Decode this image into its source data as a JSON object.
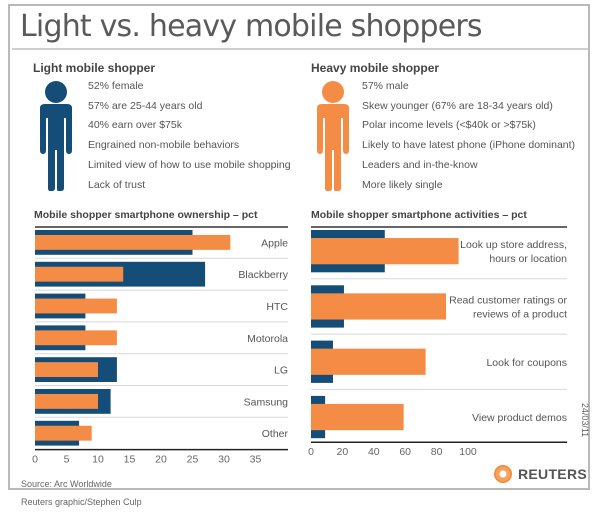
{
  "title": "Light vs. heavy mobile shoppers",
  "light": {
    "heading": "Light mobile shopper",
    "color": "#134d78",
    "icon": "person-icon",
    "traits": [
      "52% female",
      "57% are 25-44 years old",
      "40% earn over $75k",
      "Engrained non-mobile behaviors",
      "Limited view of how to use mobile shopping",
      "Lack of trust"
    ]
  },
  "heavy": {
    "heading": "Heavy mobile shopper",
    "color": "#f48c45",
    "icon": "person-icon",
    "traits": [
      "57% male",
      "Skew younger (67% are 18-34 years old)",
      "Polar income levels (<$40k or >$75k)",
      "Likely to have latest phone (iPhone dominant)",
      "Leaders and in-the-know",
      "More likely single"
    ]
  },
  "chart_data": [
    {
      "type": "bar",
      "orientation": "horizontal",
      "title": "Mobile shopper smartphone ownership – pct",
      "categories": [
        "Apple",
        "Blackberry",
        "HTC",
        "Motorola",
        "LG",
        "Samsung",
        "Other"
      ],
      "series": [
        {
          "name": "Light mobile shopper",
          "color": "#134d78",
          "values": [
            25,
            27,
            8,
            8,
            13,
            12,
            7
          ]
        },
        {
          "name": "Heavy mobile shopper",
          "color": "#f48c45",
          "values": [
            31,
            14,
            13,
            13,
            10,
            10,
            9
          ]
        }
      ],
      "xticks": [
        0,
        5,
        10,
        15,
        20,
        25,
        30,
        35
      ],
      "xlim": [
        0,
        40
      ],
      "grid": false
    },
    {
      "type": "bar",
      "orientation": "horizontal",
      "title": "Mobile shopper smartphone activities – pct",
      "categories": [
        "Look up store address, hours or location",
        "Read customer ratings or reviews of a product",
        "Look for coupons",
        "View product demos"
      ],
      "category_lines": [
        [
          "Look up store address,",
          "hours or location"
        ],
        [
          "Read customer ratings or",
          "reviews of a product"
        ],
        [
          "Look for coupons"
        ],
        [
          "View product demos"
        ]
      ],
      "series": [
        {
          "name": "Light mobile shopper",
          "color": "#134d78",
          "values": [
            47,
            21,
            14,
            9
          ]
        },
        {
          "name": "Heavy mobile shopper",
          "color": "#f48c45",
          "values": [
            94,
            86,
            73,
            59
          ]
        }
      ],
      "xticks": [
        0,
        20,
        40,
        60,
        80,
        100
      ],
      "xlim": [
        0,
        100
      ],
      "grid": false
    }
  ],
  "footer": {
    "source": "Source: Arc Worldwide",
    "credit": "Reuters graphic/Stephen Culp",
    "brand": "REUTERS",
    "date": "24/03/11"
  }
}
